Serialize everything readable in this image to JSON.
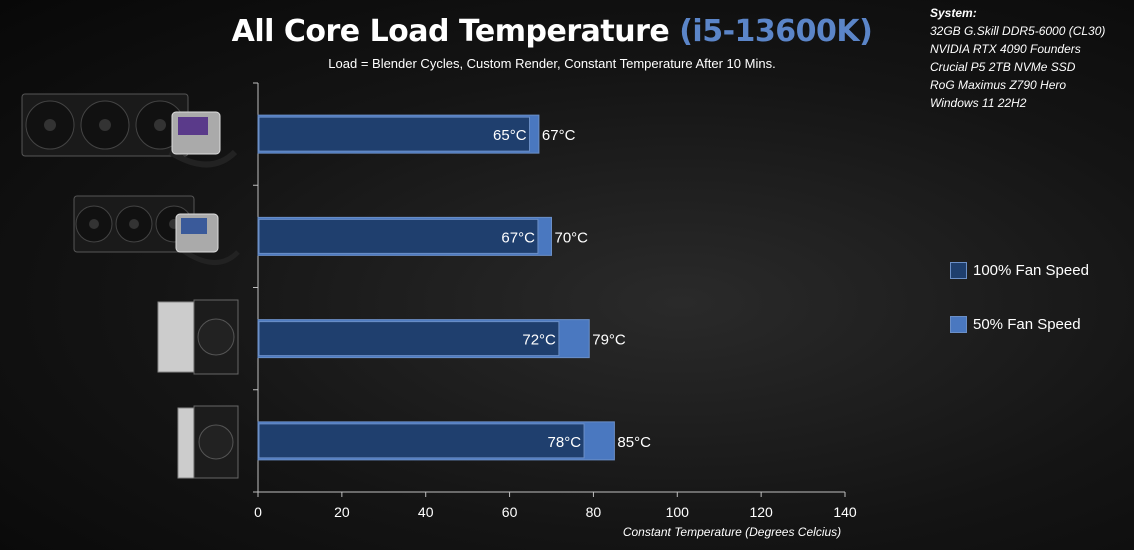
{
  "header": {
    "title_main": "All Core Load Temperature",
    "title_accent": "(i5-13600K)",
    "subtitle": "Load = Blender Cycles, Custom Render, Constant Temperature After 10 Mins."
  },
  "system_info": {
    "heading": "System:",
    "lines": [
      "32GB G.Skill DDR5-6000 (CL30)",
      "NVIDIA RTX 4090 Founders",
      "Crucial P5 2TB NVMe SSD",
      "RoG Maximus Z790 Hero",
      "Windows 11 22H2"
    ]
  },
  "legend": [
    {
      "label": "100% Fan Speed",
      "color": "#1f3f6e"
    },
    {
      "label": "50% Fan Speed",
      "color": "#4a78c0"
    }
  ],
  "colors": {
    "series_100": "#1f3f6e",
    "series_50": "#4a78c0",
    "bar_border": "#6b8fc7",
    "accent": "#5b85c8"
  },
  "coolers": [
    {
      "icon": "triple-fan-aio-icon"
    },
    {
      "icon": "triple-fan-aio-icon"
    },
    {
      "icon": "dual-tower-air-cooler-icon"
    },
    {
      "icon": "single-tower-air-cooler-icon"
    }
  ],
  "chart_data": {
    "type": "bar",
    "orientation": "horizontal",
    "series": [
      {
        "name": "100% Fan Speed",
        "values": [
          65,
          67,
          72,
          78
        ],
        "labels": [
          "65°C",
          "67°C",
          "72°C",
          "78°C"
        ]
      },
      {
        "name": "50% Fan Speed",
        "values": [
          67,
          70,
          79,
          85
        ],
        "labels": [
          "67°C",
          "70°C",
          "79°C",
          "85°C"
        ]
      }
    ],
    "xlabel": "Constant Temperature (Degrees Celcius)",
    "xlim": [
      0,
      140
    ],
    "xticks": [
      "0",
      "20",
      "40",
      "60",
      "80",
      "100",
      "120",
      "140"
    ],
    "grid": false,
    "legend_position": "right"
  }
}
